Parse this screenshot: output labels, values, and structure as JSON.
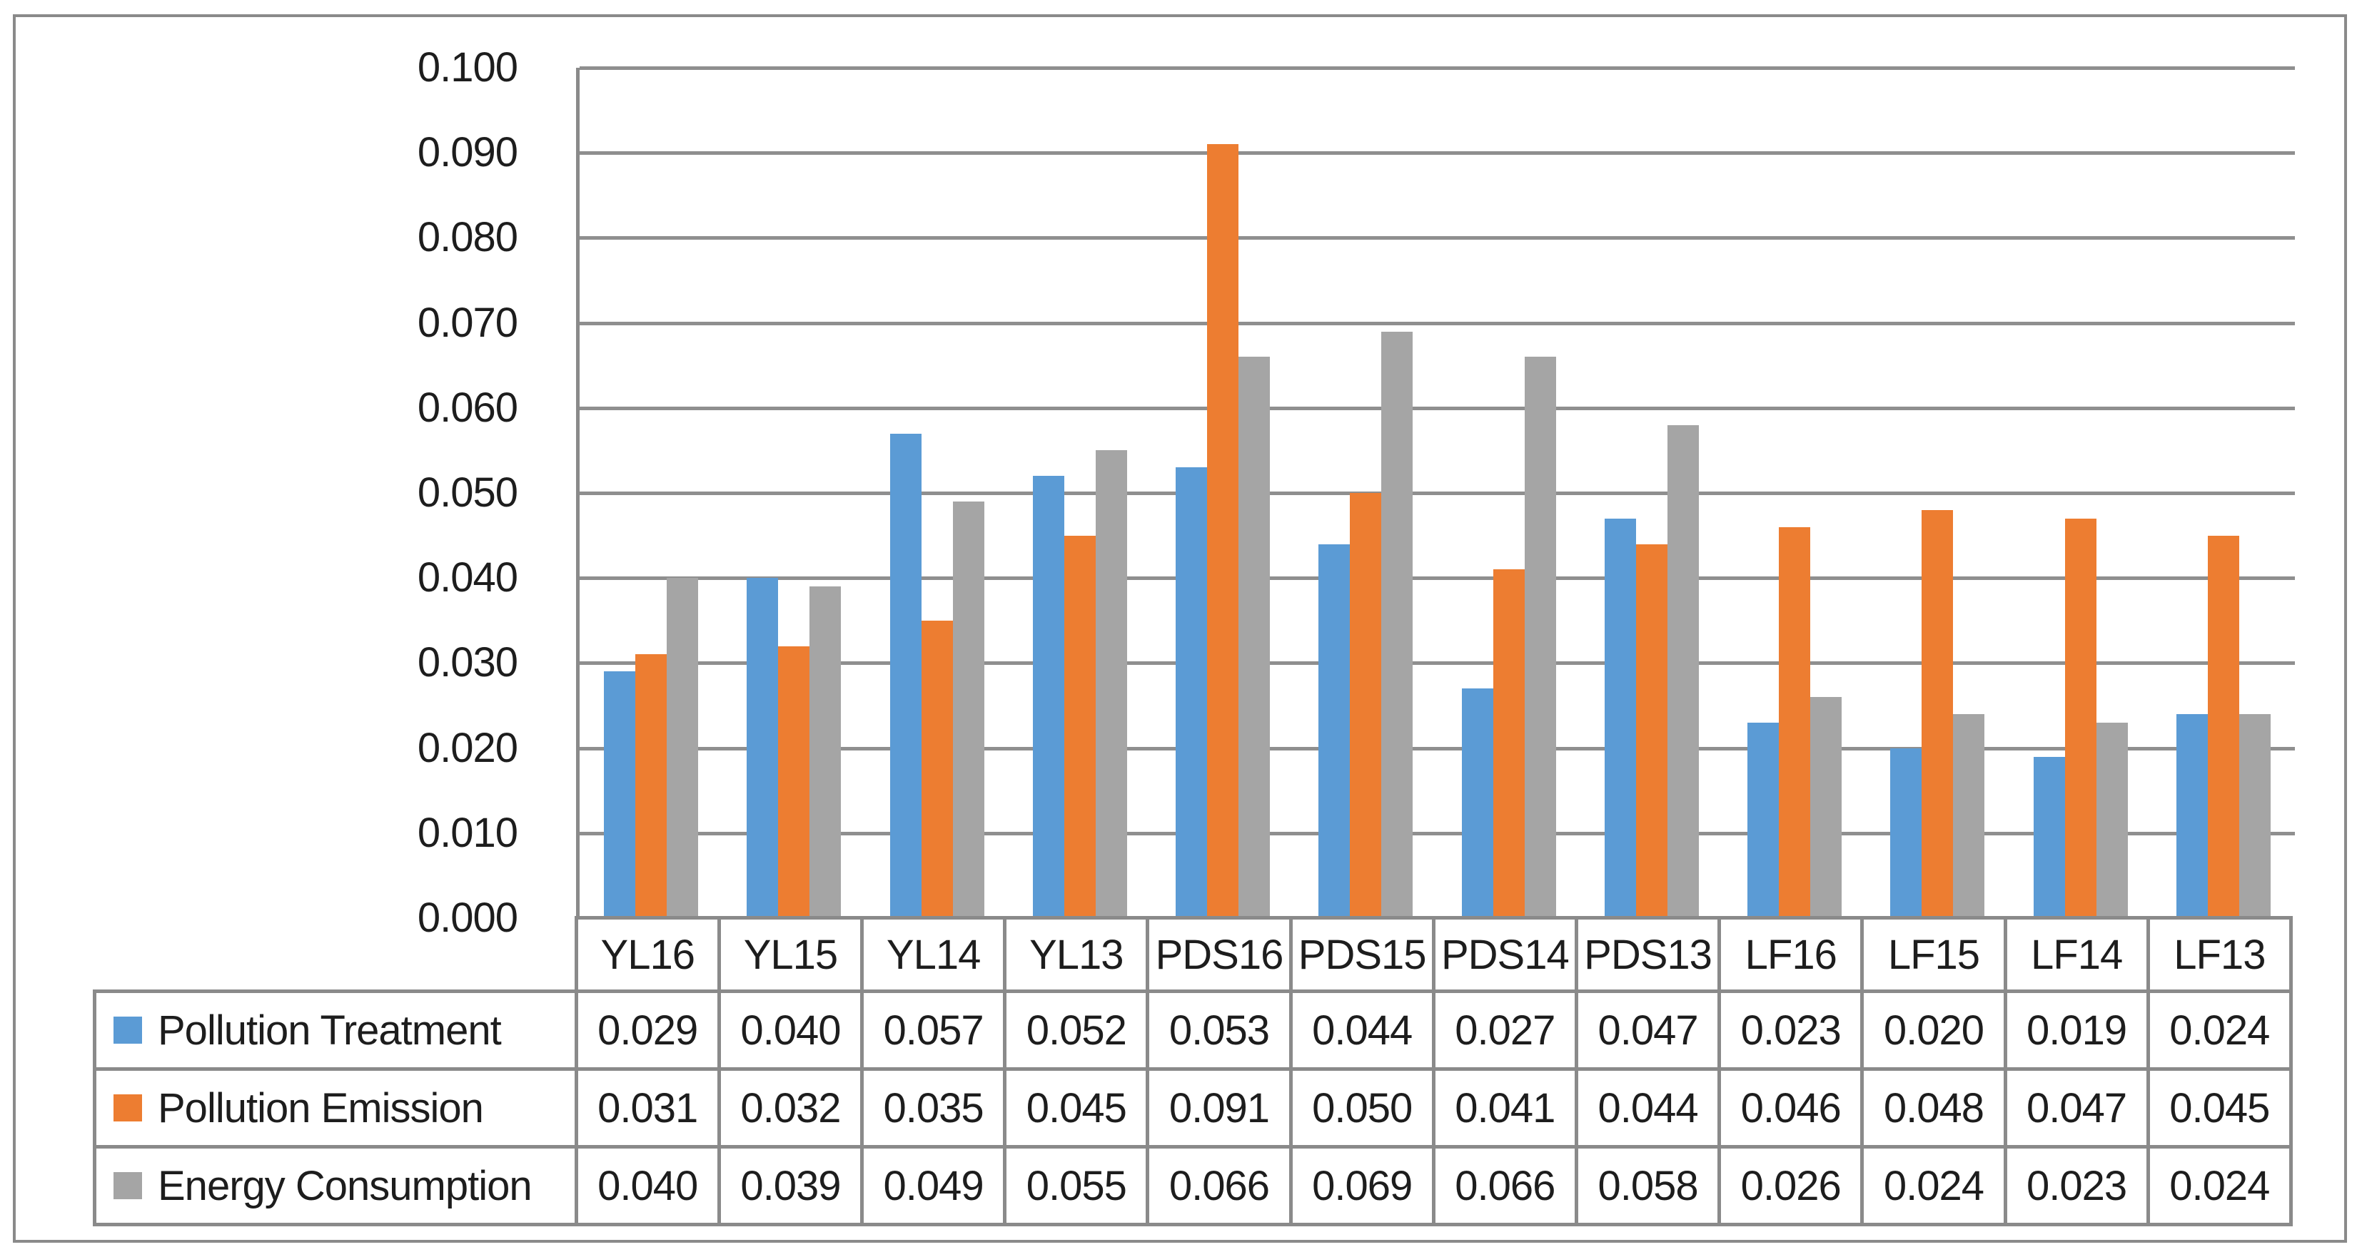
{
  "chart_data": {
    "type": "bar",
    "title": "",
    "categories": [
      "YL16",
      "YL15",
      "YL14",
      "YL13",
      "PDS16",
      "PDS15",
      "PDS14",
      "PDS13",
      "LF16",
      "LF15",
      "LF14",
      "LF13"
    ],
    "series": [
      {
        "name": "Pollution Treatment",
        "color": "#5B9BD5",
        "values": [
          "0.029",
          "0.040",
          "0.057",
          "0.052",
          "0.053",
          "0.044",
          "0.027",
          "0.047",
          "0.023",
          "0.020",
          "0.019",
          "0.024"
        ]
      },
      {
        "name": "Pollution Emission",
        "color": "#ED7D31",
        "values": [
          "0.031",
          "0.032",
          "0.035",
          "0.045",
          "0.091",
          "0.050",
          "0.041",
          "0.044",
          "0.046",
          "0.048",
          "0.047",
          "0.045"
        ]
      },
      {
        "name": "Energy Consumption",
        "color": "#A5A5A5",
        "values": [
          "0.040",
          "0.039",
          "0.049",
          "0.055",
          "0.066",
          "0.069",
          "0.066",
          "0.058",
          "0.026",
          "0.024",
          "0.023",
          "0.024"
        ]
      }
    ],
    "xlabel": "",
    "ylabel": "",
    "ylim": [
      0,
      0.1
    ],
    "y_tick_step": 0.01,
    "y_ticks": [
      "0.100",
      "0.090",
      "0.080",
      "0.070",
      "0.060",
      "0.050",
      "0.040",
      "0.030",
      "0.020",
      "0.010",
      "0.000"
    ],
    "grid": true,
    "legend_position": "data-table-left-column",
    "value_format": "3-decimals"
  },
  "colors": {
    "background": "#FFFFFF",
    "border": "#8A8A8A",
    "gridline": "#8F8F8F",
    "text": "#1D1D1D"
  }
}
